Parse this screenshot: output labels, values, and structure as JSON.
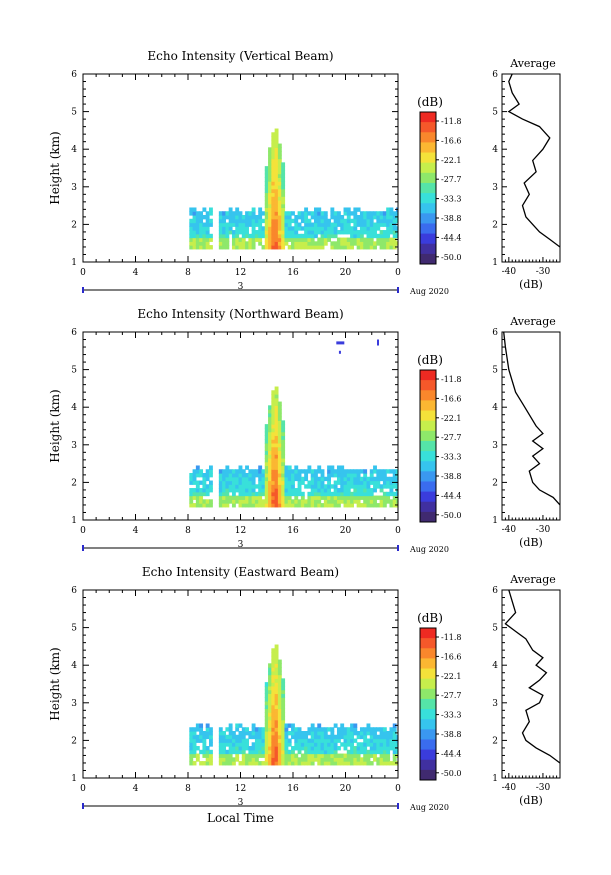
{
  "chart_data": [
    {
      "type": "heatmap",
      "title": "Echo Intensity (Vertical Beam)",
      "ylabel": "Height (km)",
      "ylim": [
        1,
        6
      ],
      "yticks": [
        "1",
        "2",
        "3",
        "4",
        "5",
        "6"
      ],
      "xlim": [
        0,
        24
      ],
      "xticks": [
        "0",
        "4",
        "8",
        "12",
        "16",
        "20",
        "0"
      ],
      "date_day": "3",
      "date_month": "Aug 2020",
      "colorbar": {
        "unit": "(dB)",
        "ticks": [
          "-11.8",
          "-16.6",
          "-22.1",
          "-27.7",
          "-33.3",
          "-38.8",
          "-44.4",
          "-50.0"
        ]
      },
      "profile": {
        "title": "Average",
        "xlabel": "(dB)",
        "xticks": [
          "-40",
          "-30"
        ],
        "xlim": [
          -42,
          -25
        ],
        "ylim": [
          1,
          6
        ],
        "points": [
          [
            -25,
            1.4
          ],
          [
            -28,
            1.6
          ],
          [
            -31,
            1.8
          ],
          [
            -33,
            2.0
          ],
          [
            -35,
            2.2
          ],
          [
            -36,
            2.5
          ],
          [
            -34,
            2.8
          ],
          [
            -35.5,
            3.1
          ],
          [
            -32,
            3.4
          ],
          [
            -33,
            3.7
          ],
          [
            -30,
            4.0
          ],
          [
            -28,
            4.3
          ],
          [
            -31,
            4.6
          ],
          [
            -36,
            4.8
          ],
          [
            -40,
            5.0
          ],
          [
            -37,
            5.2
          ],
          [
            -39,
            5.5
          ],
          [
            -40,
            5.8
          ],
          [
            -39,
            6.0
          ]
        ]
      }
    },
    {
      "type": "heatmap",
      "title": "Echo Intensity (Northward Beam)",
      "ylabel": "Height (km)",
      "ylim": [
        1,
        6
      ],
      "yticks": [
        "1",
        "2",
        "3",
        "4",
        "5",
        "6"
      ],
      "xlim": [
        0,
        24
      ],
      "xticks": [
        "0",
        "4",
        "8",
        "12",
        "16",
        "20",
        "0"
      ],
      "date_day": "3",
      "date_month": "Aug 2020",
      "colorbar": {
        "unit": "(dB)",
        "ticks": [
          "-11.8",
          "-16.6",
          "-22.1",
          "-27.7",
          "-33.3",
          "-38.8",
          "-44.4",
          "-50.0"
        ]
      },
      "profile": {
        "title": "Average",
        "xlabel": "(dB)",
        "xticks": [
          "-40",
          "-30"
        ],
        "xlim": [
          -42,
          -25
        ],
        "ylim": [
          1,
          6
        ],
        "points": [
          [
            -25,
            1.4
          ],
          [
            -27,
            1.6
          ],
          [
            -31,
            1.8
          ],
          [
            -33,
            2.0
          ],
          [
            -34,
            2.3
          ],
          [
            -31,
            2.5
          ],
          [
            -33,
            2.7
          ],
          [
            -30,
            2.9
          ],
          [
            -33,
            3.1
          ],
          [
            -30,
            3.3
          ],
          [
            -32,
            3.5
          ],
          [
            -34,
            3.8
          ],
          [
            -36,
            4.1
          ],
          [
            -38,
            4.4
          ],
          [
            -39,
            4.7
          ],
          [
            -40,
            5.0
          ],
          [
            -40.5,
            5.3
          ],
          [
            -41,
            5.6
          ],
          [
            -41.5,
            6.0
          ]
        ]
      }
    },
    {
      "type": "heatmap",
      "title": "Echo Intensity (Eastward Beam)",
      "ylabel": "Height (km)",
      "ylim": [
        1,
        6
      ],
      "yticks": [
        "1",
        "2",
        "3",
        "4",
        "5",
        "6"
      ],
      "xlim": [
        0,
        24
      ],
      "xticks": [
        "0",
        "4",
        "8",
        "12",
        "16",
        "20",
        "0"
      ],
      "xlabel": "Local Time",
      "date_day": "3",
      "date_month": "Aug 2020",
      "colorbar": {
        "unit": "(dB)",
        "ticks": [
          "-11.8",
          "-16.6",
          "-22.1",
          "-27.7",
          "-33.3",
          "-38.8",
          "-44.4",
          "-50.0"
        ]
      },
      "profile": {
        "title": "Average",
        "xlabel": "(dB)",
        "xticks": [
          "-40",
          "-30"
        ],
        "xlim": [
          -42,
          -25
        ],
        "ylim": [
          1,
          6
        ],
        "points": [
          [
            -25,
            1.4
          ],
          [
            -28,
            1.6
          ],
          [
            -32,
            1.8
          ],
          [
            -35,
            2.0
          ],
          [
            -36,
            2.2
          ],
          [
            -34,
            2.5
          ],
          [
            -35,
            2.8
          ],
          [
            -31,
            3.0
          ],
          [
            -30,
            3.2
          ],
          [
            -34,
            3.4
          ],
          [
            -31,
            3.6
          ],
          [
            -29,
            3.8
          ],
          [
            -32,
            4.0
          ],
          [
            -30,
            4.2
          ],
          [
            -33,
            4.4
          ],
          [
            -35,
            4.7
          ],
          [
            -38,
            4.9
          ],
          [
            -41,
            5.1
          ],
          [
            -38,
            5.4
          ],
          [
            -39,
            5.7
          ],
          [
            -40,
            6.0
          ]
        ]
      }
    }
  ]
}
